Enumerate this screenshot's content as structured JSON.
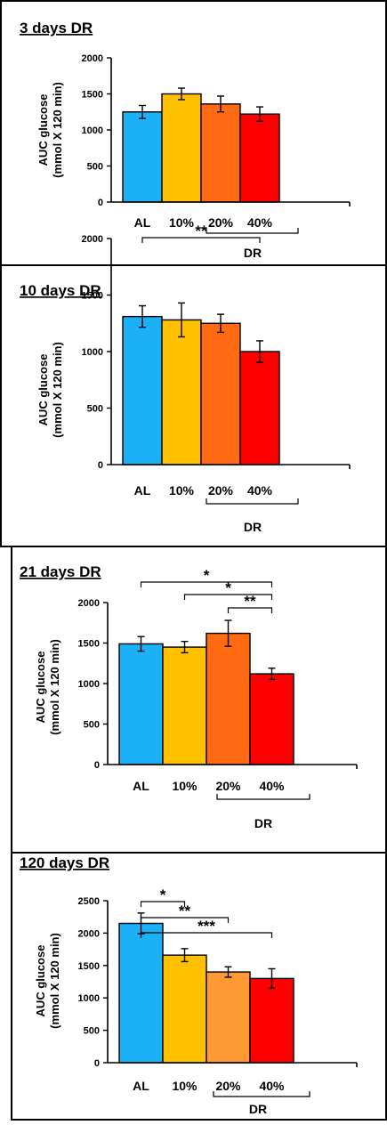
{
  "panels": [
    {
      "title": "3 days DR",
      "ylabel_line1": "AUC glucose",
      "ylabel_line2": "(mmol X 120 min)",
      "group_label": "DR",
      "significance": []
    },
    {
      "title": "10 days DR",
      "ylabel_line1": "AUC glucose",
      "ylabel_line2": "(mmol X 120 min)",
      "group_label": "DR",
      "significance": [
        {
          "from": 0,
          "to": 3,
          "label": "**"
        }
      ]
    },
    {
      "title": "21 days DR",
      "ylabel_line1": "AUC glucose",
      "ylabel_line2": "(mmol X 120 min)",
      "group_label": "DR",
      "significance": [
        {
          "from": 0,
          "to": 3,
          "label": "*"
        },
        {
          "from": 1,
          "to": 3,
          "label": "*"
        },
        {
          "from": 2,
          "to": 3,
          "label": "**"
        }
      ]
    },
    {
      "title": "120 days DR",
      "ylabel_line1": "AUC glucose",
      "ylabel_line2": "(mmol X 120 min)",
      "group_label": "DR",
      "significance": [
        {
          "from": 0,
          "to": 3,
          "label": "***"
        },
        {
          "from": 0,
          "to": 2,
          "label": "**"
        },
        {
          "from": 0,
          "to": 1,
          "label": "*"
        }
      ]
    }
  ],
  "chart_data": [
    {
      "type": "bar",
      "title": "3 days DR",
      "ylabel": "AUC glucose (mmol X 120 min)",
      "categories": [
        "AL",
        "10%",
        "20%",
        "40%"
      ],
      "values": [
        1250,
        1500,
        1360,
        1220
      ],
      "errors": [
        90,
        80,
        110,
        100
      ],
      "ylim": [
        0,
        2000
      ],
      "yticks": [
        0,
        500,
        1000,
        1500,
        2000
      ],
      "colors": [
        "#1cb0f6",
        "#ffc000",
        "#ff6a13",
        "#ff0000"
      ],
      "grid": false
    },
    {
      "type": "bar",
      "title": "10 days DR",
      "ylabel": "AUC glucose (mmol X 120 min)",
      "categories": [
        "AL",
        "10%",
        "20%",
        "40%"
      ],
      "values": [
        1310,
        1280,
        1250,
        1000
      ],
      "errors": [
        95,
        150,
        80,
        95
      ],
      "ylim": [
        0,
        2000
      ],
      "yticks": [
        0,
        500,
        1000,
        1500,
        2000
      ],
      "colors": [
        "#1cb0f6",
        "#ffc000",
        "#ff6a13",
        "#ff0000"
      ],
      "grid": false
    },
    {
      "type": "bar",
      "title": "21 days DR",
      "ylabel": "AUC glucose (mmol X 120 min)",
      "categories": [
        "AL",
        "10%",
        "20%",
        "40%"
      ],
      "values": [
        1490,
        1450,
        1620,
        1120
      ],
      "errors": [
        90,
        70,
        160,
        70
      ],
      "ylim": [
        0,
        2000
      ],
      "yticks": [
        0,
        500,
        1000,
        1500,
        2000
      ],
      "colors": [
        "#1cb0f6",
        "#ffc000",
        "#ff6a13",
        "#ff0000"
      ],
      "grid": false
    },
    {
      "type": "bar",
      "title": "120 days DR",
      "ylabel": "AUC glucose (mmol X 120 min)",
      "categories": [
        "AL",
        "10%",
        "20%",
        "40%"
      ],
      "values": [
        2150,
        1660,
        1400,
        1300
      ],
      "errors": [
        160,
        100,
        80,
        150
      ],
      "ylim": [
        0,
        2500
      ],
      "yticks": [
        0,
        500,
        1000,
        1500,
        2000,
        2500
      ],
      "colors": [
        "#1cb0f6",
        "#ffc000",
        "#ff9933",
        "#ff0000"
      ],
      "grid": false
    }
  ]
}
